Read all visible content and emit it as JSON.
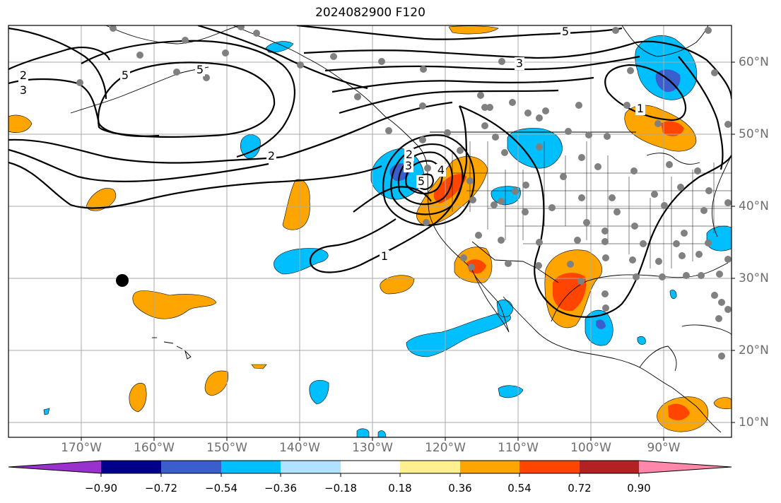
{
  "title": "2024082900 F120",
  "lon_ticks": [
    "170°W",
    "160°W",
    "150°W",
    "140°W",
    "130°W",
    "120°W",
    "110°W",
    "100°W",
    "90°W"
  ],
  "lat_ticks": [
    "60°N",
    "50°N",
    "40°N",
    "30°N",
    "20°N",
    "10°N"
  ],
  "contour_labels": [
    "2",
    "3",
    "5",
    "5",
    "3",
    "2",
    "2",
    "3",
    "4",
    "5",
    "1",
    "1",
    "5",
    "3",
    "1"
  ],
  "colorbar": {
    "labels": [
      "−0.90",
      "−0.72",
      "−0.54",
      "−0.36",
      "−0.18",
      "0.18",
      "0.36",
      "0.54",
      "0.72",
      "0.90"
    ],
    "colors": [
      "#9932cc",
      "#00008b",
      "#3a5fcd",
      "#00bfff",
      "#b0e2ff",
      "#ffffff",
      "#fff08f",
      "#ffa500",
      "#ff4500",
      "#b22222",
      "#ff88aa"
    ]
  },
  "colors": {
    "coast": "#000000",
    "grid": "#a9a9a9",
    "station_dot": "#808080",
    "marker": "#000000"
  }
}
